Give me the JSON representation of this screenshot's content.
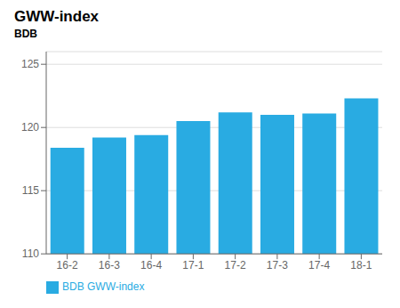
{
  "chart_data": {
    "type": "bar",
    "title": "GWW-index",
    "subtitle": "BDB",
    "categories": [
      "16-2",
      "16-3",
      "16-4",
      "17-1",
      "17-2",
      "17-3",
      "17-4",
      "18-1"
    ],
    "series": [
      {
        "name": "BDB GWW-index",
        "color": "#29ABE2",
        "values": [
          118.4,
          119.2,
          119.4,
          120.5,
          121.2,
          121.0,
          121.1,
          122.3
        ]
      }
    ],
    "ylim": [
      110,
      126
    ],
    "yticks": [
      110,
      115,
      120,
      125
    ],
    "grid": true,
    "legend": "lower left"
  }
}
